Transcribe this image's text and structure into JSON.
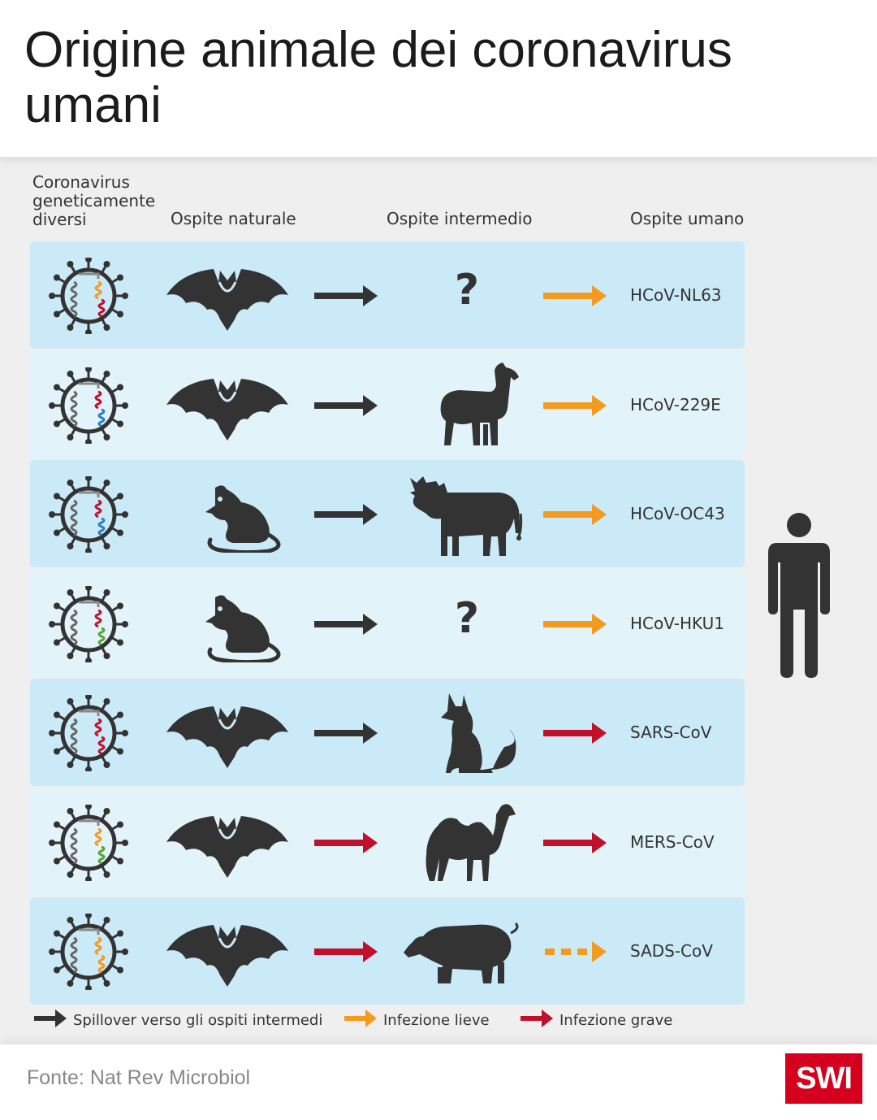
{
  "title": "Origine animale dei coronavirus umani",
  "column_headers": {
    "virus": "Coronavirus geneticamente diversi",
    "natural": "Ospite naturale",
    "intermediate": "Ospite intermedio",
    "human": "Ospite umano"
  },
  "colors": {
    "spillover": "#333333",
    "mild": "#f39a1f",
    "severe": "#c0102c",
    "row_dark": "#cbeaf8",
    "row_light": "#e3f3fa",
    "brand": "#d4001e"
  },
  "rows": [
    {
      "natural_host": "bat-icon",
      "arrow1": "spillover",
      "intermediate_host": "question-mark",
      "intermediate_text": "?",
      "arrow2": "mild",
      "human_virus": "HCoV-NL63",
      "gene_colors": [
        "#f39a1f",
        "#c0102c"
      ]
    },
    {
      "natural_host": "bat-icon",
      "arrow1": "spillover",
      "intermediate_host": "alpaca-icon",
      "intermediate_text": "",
      "arrow2": "mild",
      "human_virus": "HCoV-229E",
      "gene_colors": [
        "#c0102c",
        "#2980c8"
      ]
    },
    {
      "natural_host": "rat-icon",
      "arrow1": "spillover",
      "intermediate_host": "cow-icon",
      "intermediate_text": "",
      "arrow2": "mild",
      "human_virus": "HCoV-OC43",
      "gene_colors": [
        "#c0102c",
        "#2980c8"
      ]
    },
    {
      "natural_host": "rat-icon",
      "arrow1": "spillover",
      "intermediate_host": "question-mark",
      "intermediate_text": "?",
      "arrow2": "mild",
      "human_virus": "HCoV-HKU1",
      "gene_colors": [
        "#c0102c",
        "#55a630"
      ]
    },
    {
      "natural_host": "bat-icon",
      "arrow1": "spillover",
      "intermediate_host": "civet-icon",
      "intermediate_text": "",
      "arrow2": "severe",
      "human_virus": "SARS-CoV",
      "gene_colors": [
        "#c0102c",
        "#c0102c"
      ]
    },
    {
      "natural_host": "bat-icon",
      "arrow1": "severe",
      "intermediate_host": "camel-icon",
      "intermediate_text": "",
      "arrow2": "severe",
      "human_virus": "MERS-CoV",
      "gene_colors": [
        "#f39a1f",
        "#55a630"
      ]
    },
    {
      "natural_host": "bat-icon",
      "arrow1": "severe",
      "intermediate_host": "pig-icon",
      "intermediate_text": "",
      "arrow2": "mild-dashed",
      "human_virus": "SADS-CoV",
      "gene_colors": [
        "#f39a1f",
        "#f39a1f"
      ]
    }
  ],
  "legend": [
    {
      "type": "spillover",
      "label": "Spillover verso gli ospiti intermedi"
    },
    {
      "type": "mild",
      "label": "Infezione lieve"
    },
    {
      "type": "severe",
      "label": "Infezione grave"
    }
  ],
  "source": "Fonte: Nat Rev Microbiol",
  "logo": "SWI"
}
